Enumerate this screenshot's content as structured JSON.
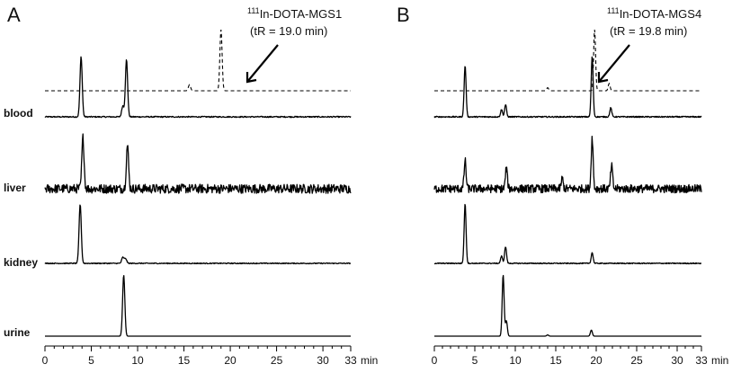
{
  "chart_data": [
    {
      "type": "line",
      "panel_label": "A",
      "x_unit": "min",
      "xlim": [
        0,
        33
      ],
      "x_ticks": [
        0,
        5,
        10,
        15,
        20,
        25,
        30,
        33
      ],
      "annotation": {
        "sup": "111",
        "line1": "In-DOTA-MGS1",
        "line2": "(tR = 19.0 min)"
      },
      "reference": {
        "peaks": [
          {
            "t": 15.6,
            "h": 0.1
          },
          {
            "t": 19.0,
            "h": 1.0
          }
        ]
      },
      "series": [
        {
          "name": "blood",
          "noise": 0.01,
          "peaks": [
            {
              "t": 3.9,
              "h": 1.0
            },
            {
              "t": 8.4,
              "h": 0.18
            },
            {
              "t": 8.8,
              "h": 0.95
            }
          ]
        },
        {
          "name": "liver",
          "noise": 0.09,
          "peaks": [
            {
              "t": 4.1,
              "h": 1.0
            },
            {
              "t": 8.9,
              "h": 0.85
            }
          ]
        },
        {
          "name": "kidney",
          "noise": 0.008,
          "peaks": [
            {
              "t": 3.8,
              "h": 1.0
            },
            {
              "t": 8.4,
              "h": 0.1
            },
            {
              "t": 8.7,
              "h": 0.08
            }
          ]
        },
        {
          "name": "urine",
          "noise": 0.0,
          "peaks": [
            {
              "t": 8.5,
              "h": 1.0
            }
          ]
        }
      ]
    },
    {
      "type": "line",
      "panel_label": "B",
      "x_unit": "min",
      "xlim": [
        0,
        33
      ],
      "x_ticks": [
        0,
        5,
        10,
        15,
        20,
        25,
        30,
        33
      ],
      "annotation": {
        "sup": "111",
        "line1": "In-DOTA-MGS4",
        "line2": "(tR = 19.8 min)"
      },
      "reference": {
        "peaks": [
          {
            "t": 14.0,
            "h": 0.05
          },
          {
            "t": 19.8,
            "h": 1.0
          },
          {
            "t": 21.6,
            "h": 0.12
          }
        ]
      },
      "series": [
        {
          "name": "blood",
          "noise": 0.01,
          "peaks": [
            {
              "t": 3.8,
              "h": 0.85
            },
            {
              "t": 8.3,
              "h": 0.12
            },
            {
              "t": 8.8,
              "h": 0.2
            },
            {
              "t": 19.5,
              "h": 1.0
            },
            {
              "t": 21.8,
              "h": 0.15
            }
          ]
        },
        {
          "name": "liver",
          "noise": 0.08,
          "peaks": [
            {
              "t": 3.8,
              "h": 0.55
            },
            {
              "t": 8.9,
              "h": 0.4
            },
            {
              "t": 15.8,
              "h": 0.2
            },
            {
              "t": 19.5,
              "h": 1.0
            },
            {
              "t": 21.9,
              "h": 0.45
            }
          ]
        },
        {
          "name": "kidney",
          "noise": 0.008,
          "peaks": [
            {
              "t": 3.8,
              "h": 1.0
            },
            {
              "t": 8.3,
              "h": 0.12
            },
            {
              "t": 8.8,
              "h": 0.28
            },
            {
              "t": 19.5,
              "h": 0.18
            }
          ]
        },
        {
          "name": "urine",
          "noise": 0.0,
          "peaks": [
            {
              "t": 8.5,
              "h": 1.0
            },
            {
              "t": 8.9,
              "h": 0.25
            },
            {
              "t": 14.0,
              "h": 0.02
            },
            {
              "t": 19.4,
              "h": 0.1
            }
          ]
        }
      ]
    }
  ]
}
